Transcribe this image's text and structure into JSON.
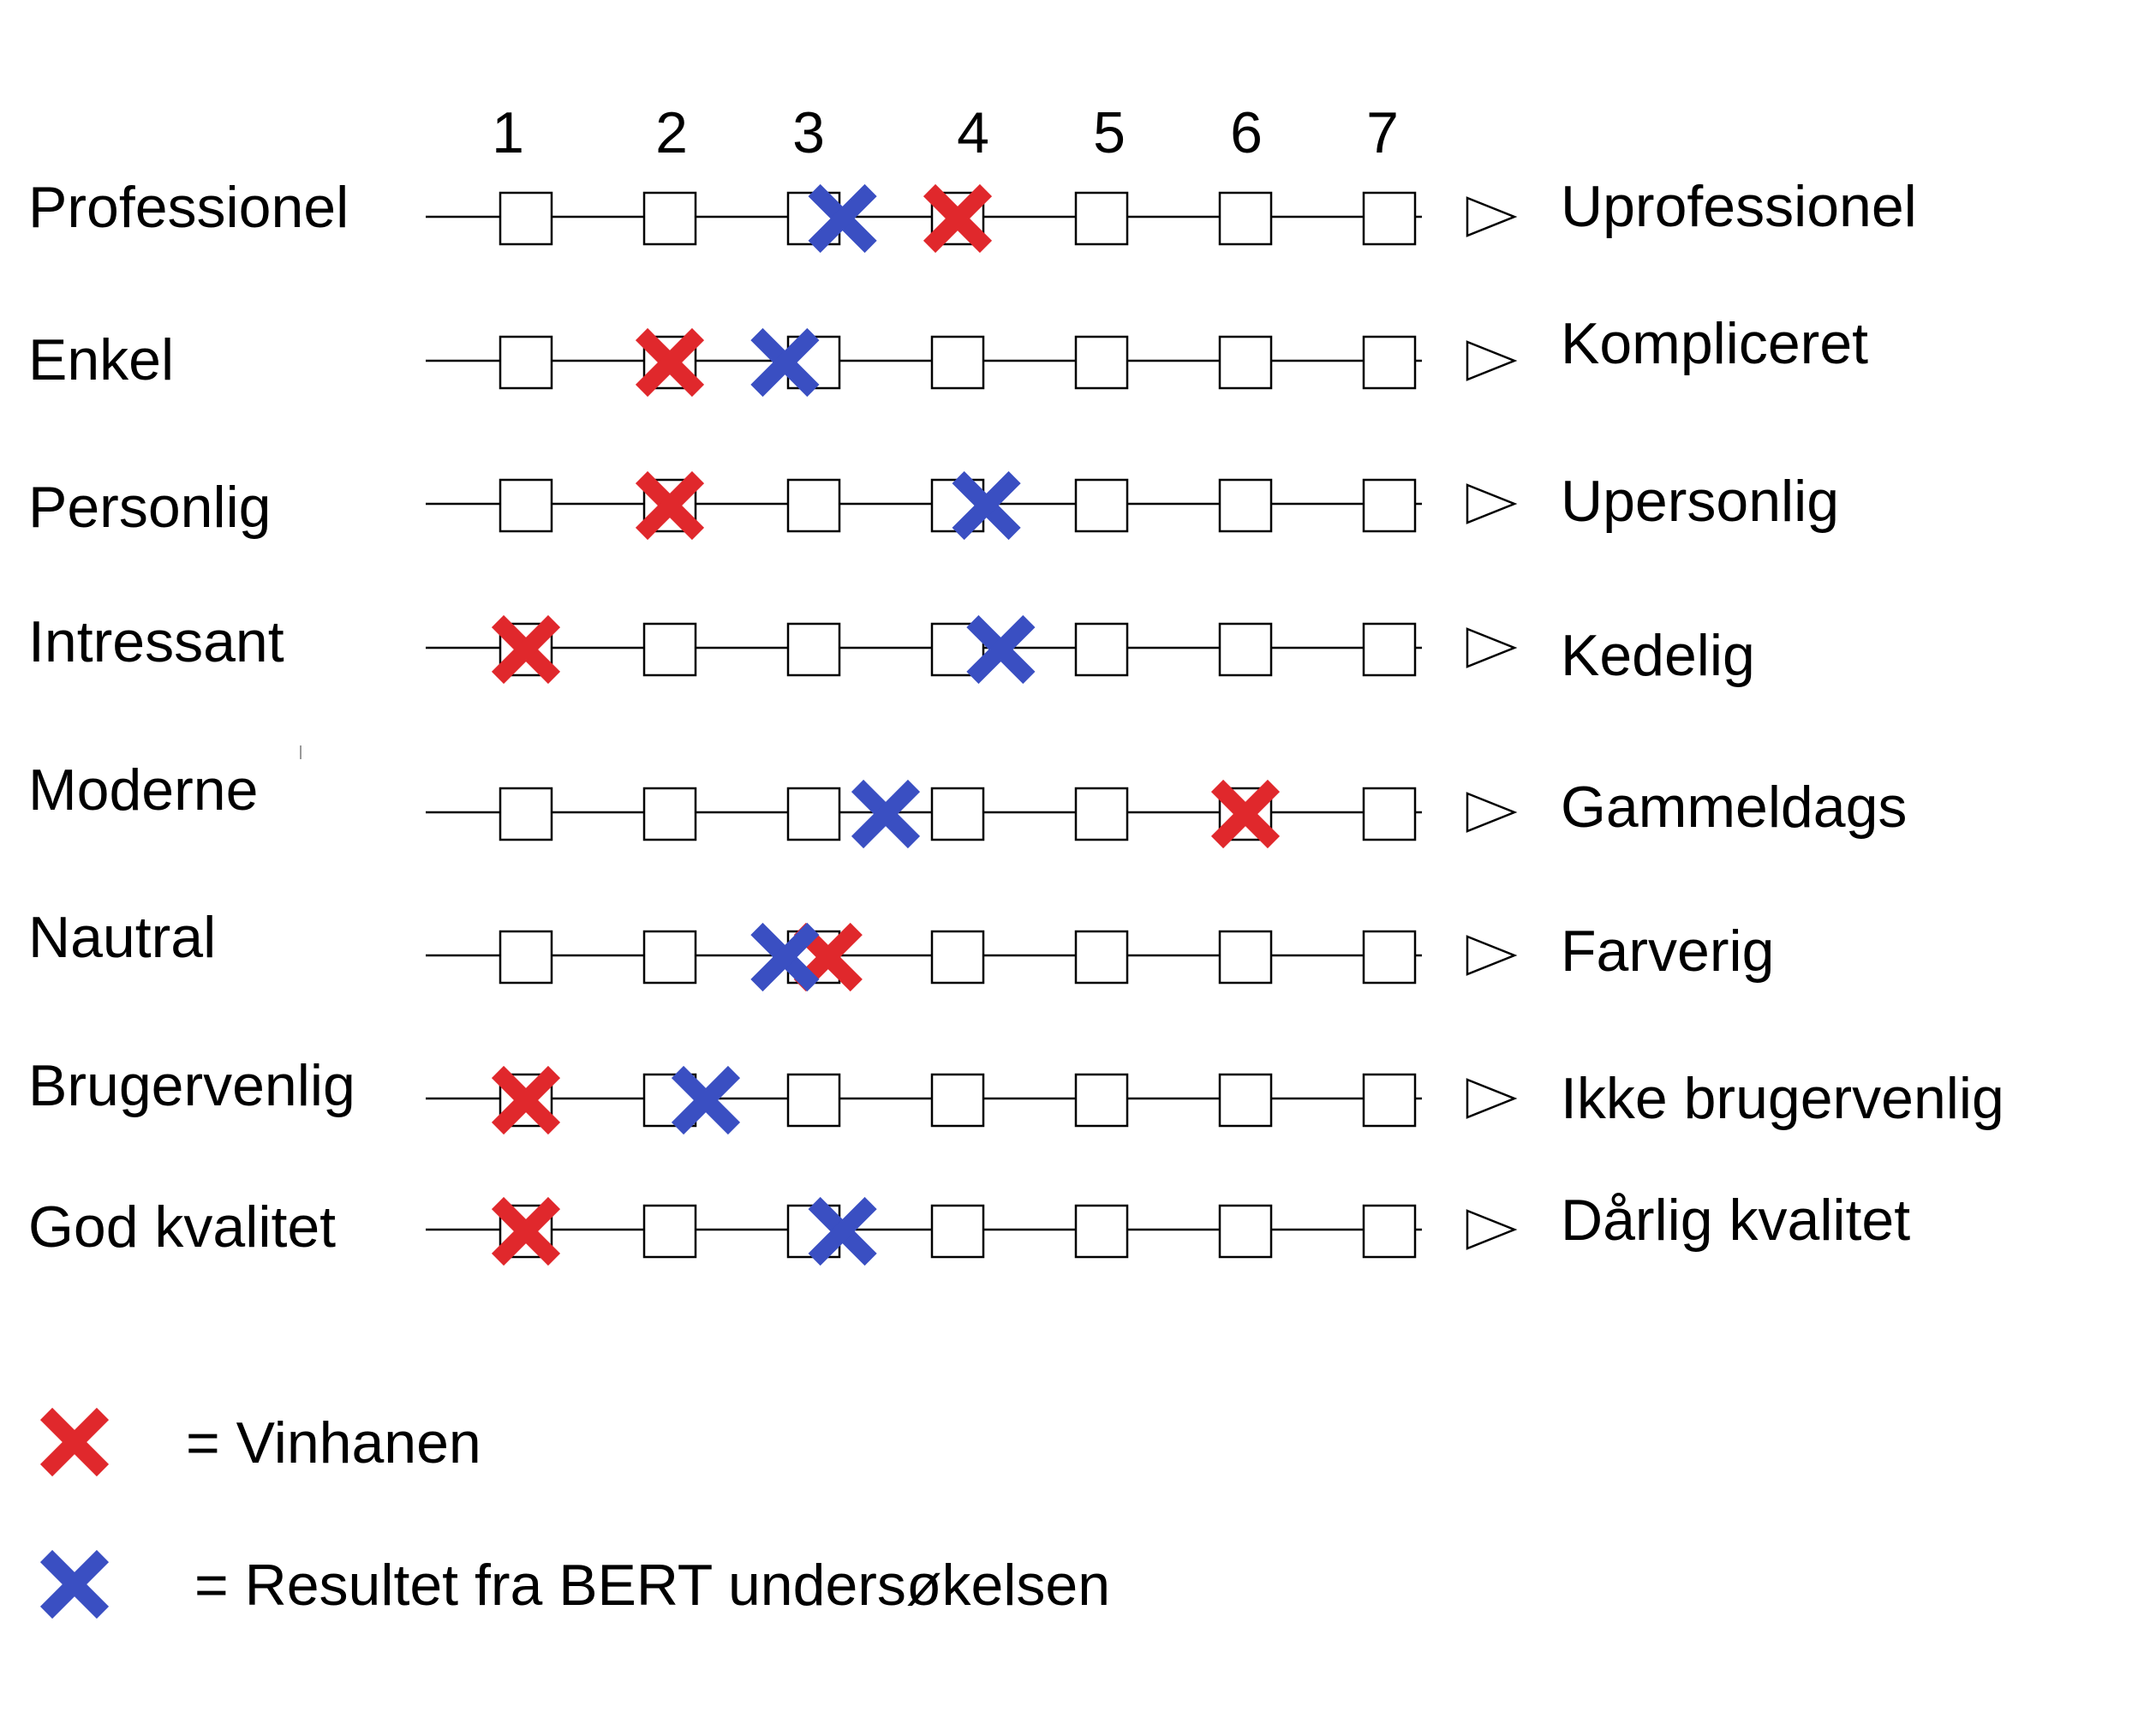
{
  "chart_data": {
    "type": "scatter",
    "scale": [
      "1",
      "2",
      "3",
      "4",
      "5",
      "6",
      "7"
    ],
    "rows": [
      {
        "left": "Professionel",
        "right": "Uprofessionel",
        "vinhanen": 4,
        "bert": 3.2
      },
      {
        "left": "Enkel",
        "right": "Kompliceret",
        "vinhanen": 2,
        "bert": 2.8
      },
      {
        "left": "Personlig",
        "right": "Upersonlig",
        "vinhanen": 2,
        "bert": 4.2
      },
      {
        "left": "Intressant",
        "right": "Kedelig",
        "vinhanen": 1,
        "bert": 4.3
      },
      {
        "left": "Moderne",
        "right": "Gammeldags",
        "vinhanen": 6,
        "bert": 3.5
      },
      {
        "left": "Nautral",
        "right": "Farverig",
        "vinhanen": 3.1,
        "bert": 2.8
      },
      {
        "left": "Brugervenlig",
        "right": "Ikke brugervenlig",
        "vinhanen": 1,
        "bert": 2.25
      },
      {
        "left": "God kvalitet",
        "right": "Dårlig kvalitet",
        "vinhanen": 1,
        "bert": 3.2
      }
    ],
    "series": [
      {
        "key": "vinhanen",
        "color": "#e0282c"
      },
      {
        "key": "bert",
        "color": "#3a4fc2"
      }
    ],
    "legend": [
      {
        "key": "vinhanen",
        "label": "= Vinhanen"
      },
      {
        "key": "bert",
        "label": "= Resultet fra BERT undersøkelsen"
      }
    ]
  }
}
